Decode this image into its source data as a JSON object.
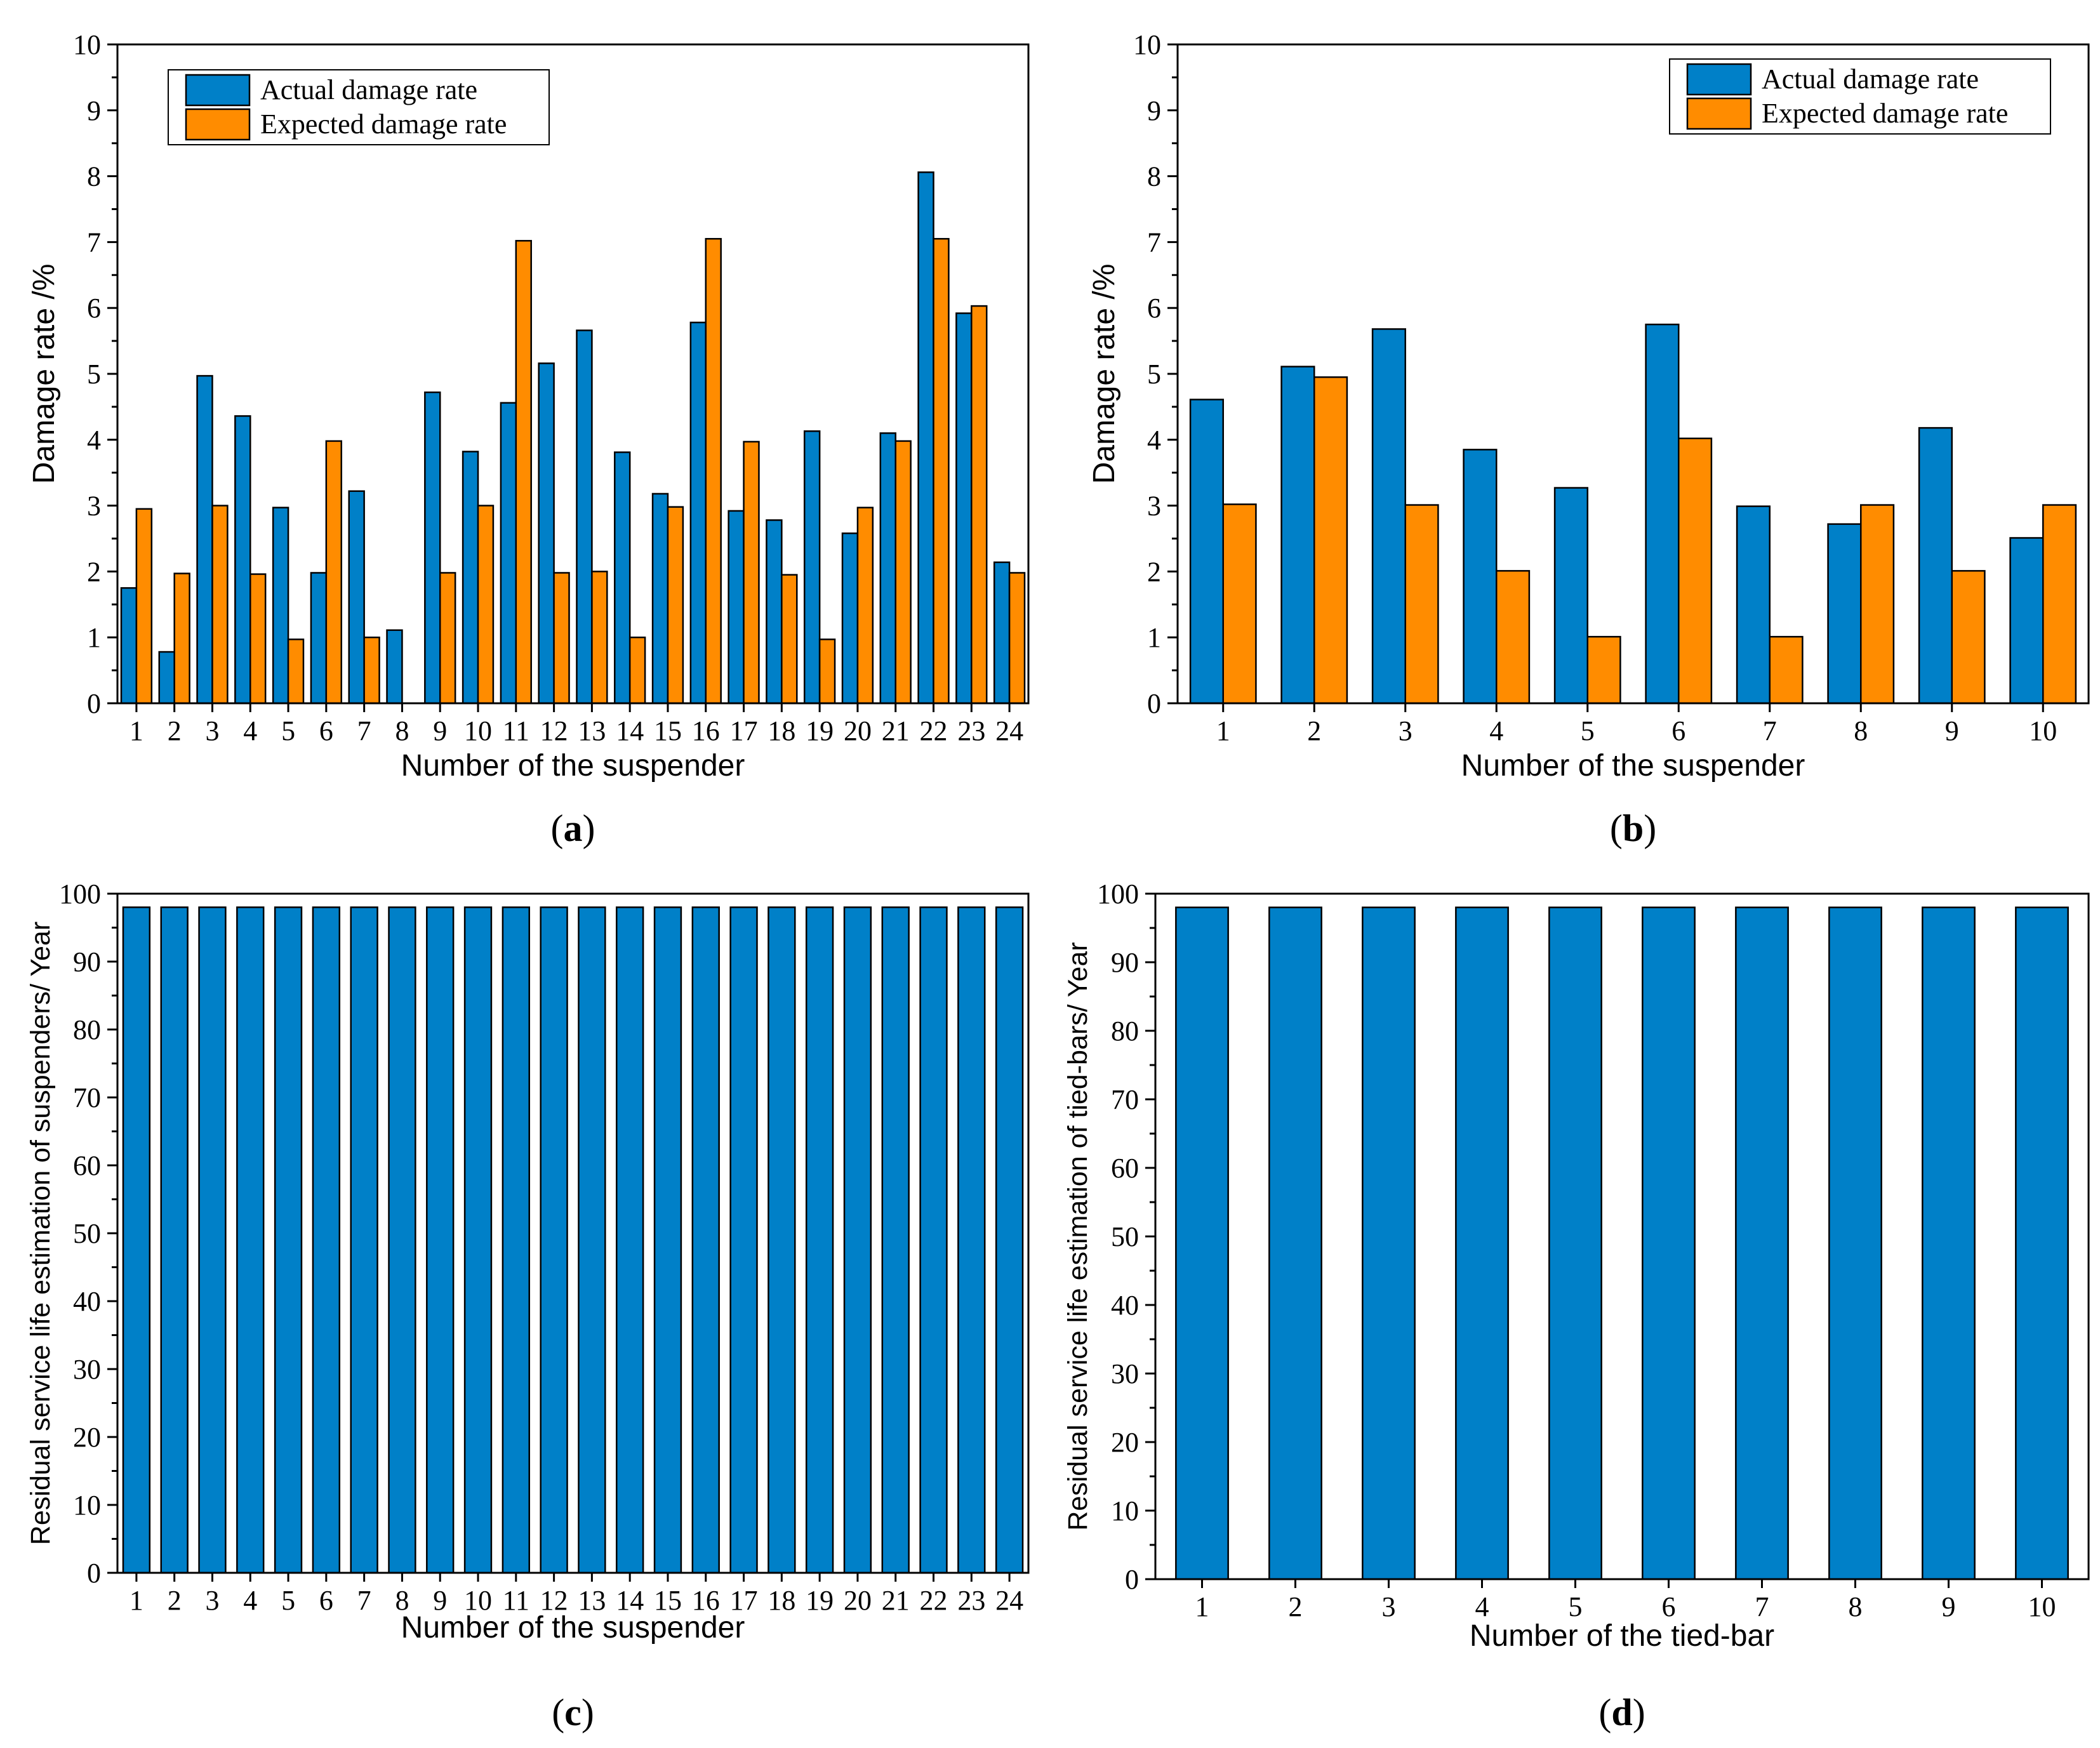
{
  "colors": {
    "actual": "#0080c8",
    "expected": "#ff8c00",
    "axis": "#000000",
    "background": "#ffffff"
  },
  "chart_data": [
    {
      "id": "a",
      "panel_label": "a",
      "type": "bar",
      "title": "",
      "xlabel": "Number of the suspender",
      "ylabel": "Damage rate /%",
      "ylim": [
        0,
        10
      ],
      "yticks": [
        0,
        1,
        2,
        3,
        4,
        5,
        6,
        7,
        8,
        9,
        10
      ],
      "categories": [
        "1",
        "2",
        "3",
        "4",
        "5",
        "6",
        "7",
        "8",
        "9",
        "10",
        "11",
        "12",
        "13",
        "14",
        "15",
        "16",
        "17",
        "18",
        "19",
        "20",
        "21",
        "22",
        "23",
        "24"
      ],
      "series": [
        {
          "name": "Actual damage rate",
          "color": "#0080c8",
          "values": [
            1.75,
            0.78,
            4.97,
            4.36,
            2.97,
            1.98,
            3.22,
            1.11,
            4.72,
            3.82,
            4.56,
            5.16,
            5.66,
            3.81,
            3.18,
            5.78,
            2.92,
            2.78,
            4.13,
            2.58,
            4.1,
            8.06,
            5.92,
            2.14
          ]
        },
        {
          "name": "Expected damage rate",
          "color": "#ff8c00",
          "values": [
            2.95,
            1.97,
            3.0,
            1.96,
            0.97,
            3.98,
            1.0,
            0.0,
            1.98,
            3.0,
            7.02,
            1.98,
            2.0,
            1.0,
            2.98,
            7.05,
            3.97,
            1.95,
            0.97,
            2.97,
            3.98,
            7.05,
            6.03,
            1.98
          ]
        }
      ],
      "legend": {
        "position": "top-left"
      }
    },
    {
      "id": "b",
      "panel_label": "b",
      "type": "bar",
      "title": "",
      "xlabel": "Number of the suspender",
      "ylabel": "Damage rate /%",
      "ylim": [
        0,
        10
      ],
      "yticks": [
        0,
        1,
        2,
        3,
        4,
        5,
        6,
        7,
        8,
        9,
        10
      ],
      "categories": [
        "1",
        "2",
        "3",
        "4",
        "5",
        "6",
        "7",
        "8",
        "9",
        "10"
      ],
      "series": [
        {
          "name": "Actual damage rate",
          "color": "#0080c8",
          "values": [
            4.61,
            5.11,
            5.68,
            3.85,
            3.27,
            5.75,
            2.99,
            2.72,
            4.18,
            2.51
          ]
        },
        {
          "name": "Expected damage rate",
          "color": "#ff8c00",
          "values": [
            3.02,
            4.95,
            3.01,
            2.01,
            1.01,
            4.02,
            1.01,
            3.01,
            2.01,
            3.01
          ]
        }
      ],
      "legend": {
        "position": "top-right"
      }
    },
    {
      "id": "c",
      "panel_label": "c",
      "type": "bar",
      "title": "",
      "xlabel": "Number of the suspender",
      "ylabel": "Residual service life estimation of suspenders/ Year",
      "ylim": [
        0,
        100
      ],
      "yticks": [
        0,
        10,
        20,
        30,
        40,
        50,
        60,
        70,
        80,
        90,
        100
      ],
      "categories": [
        "1",
        "2",
        "3",
        "4",
        "5",
        "6",
        "7",
        "8",
        "9",
        "10",
        "11",
        "12",
        "13",
        "14",
        "15",
        "16",
        "17",
        "18",
        "19",
        "20",
        "21",
        "22",
        "23",
        "24"
      ],
      "series": [
        {
          "name": "Residual service life",
          "color": "#0080c8",
          "values": [
            98,
            98,
            98,
            98,
            98,
            98,
            98,
            98,
            98,
            98,
            98,
            98,
            98,
            98,
            98,
            98,
            98,
            98,
            98,
            98,
            98,
            98,
            98,
            98
          ]
        }
      ]
    },
    {
      "id": "d",
      "panel_label": "d",
      "type": "bar",
      "title": "",
      "xlabel": "Number of the tied-bar",
      "ylabel": "Residual service life estimation of tied-bars/ Year",
      "ylim": [
        0,
        100
      ],
      "yticks": [
        0,
        10,
        20,
        30,
        40,
        50,
        60,
        70,
        80,
        90,
        100
      ],
      "categories": [
        "1",
        "2",
        "3",
        "4",
        "5",
        "6",
        "7",
        "8",
        "9",
        "10"
      ],
      "series": [
        {
          "name": "Residual service life",
          "color": "#0080c8",
          "values": [
            98,
            98,
            98,
            98,
            98,
            98,
            98,
            98,
            98,
            98
          ]
        }
      ]
    }
  ]
}
